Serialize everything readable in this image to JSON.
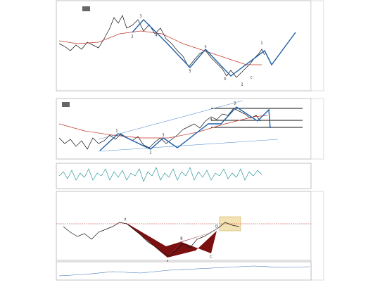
{
  "panel1": {
    "waves": [
      "2",
      "3",
      "4",
      "5",
      "a",
      "b",
      "c",
      "1",
      "2"
    ]
  },
  "panel2": {
    "waves": [
      "1",
      "2",
      "3",
      "4",
      "5"
    ]
  },
  "panel4": {
    "points": [
      "X",
      "A",
      "B",
      "C",
      "D"
    ]
  }
}
